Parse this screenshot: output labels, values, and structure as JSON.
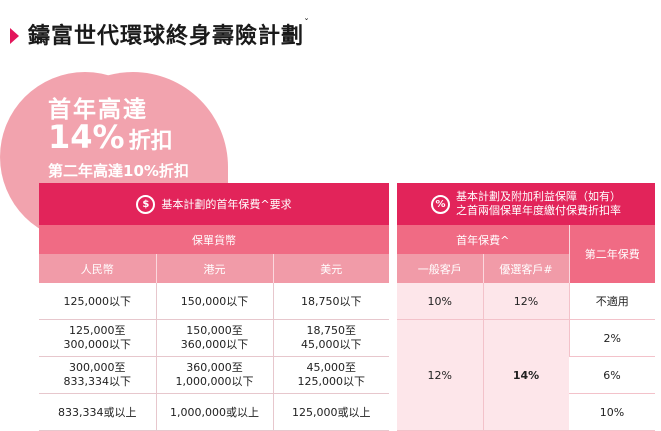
{
  "title": {
    "text": "鑄富世代環球終身壽險計劃",
    "sup": "ˇ"
  },
  "promo": {
    "line1": "首年高達",
    "line2_pct": "14%",
    "line2_cut": "折扣",
    "line3": "第二年高達10%折扣"
  },
  "left_table": {
    "header": {
      "icon": "$",
      "text": "基本計劃的首年保費^要求"
    },
    "subheader": "保單貨幣",
    "columns": [
      "人民幣",
      "港元",
      "美元"
    ],
    "rows": [
      [
        "125,000以下",
        "150,000以下",
        "18,750以下"
      ],
      [
        "125,000至\n300,000以下",
        "150,000至\n360,000以下",
        "18,750至\n45,000以下"
      ],
      [
        "300,000至\n833,334以下",
        "360,000至\n1,000,000以下",
        "45,000至\n125,000以下"
      ],
      [
        "833,334或以上",
        "1,000,000或以上",
        "125,000或以上"
      ]
    ]
  },
  "right_table": {
    "header": {
      "icon": "%",
      "line1": "基本計劃及附加利益保障（如有）",
      "line2": "之首兩個保單年度繳付保費折扣率"
    },
    "first_year_label": "首年保費^",
    "second_year_label": "第二年保費",
    "columns": [
      "一般客戶",
      "優選客戶#"
    ],
    "row1": {
      "general": "10%",
      "preferred": "12%",
      "second": "不適用"
    },
    "merged": {
      "general": "12%",
      "preferred": "14%"
    },
    "second_year_values": [
      "2%",
      "6%",
      "10%"
    ]
  },
  "colors": {
    "accent": "#e3165b",
    "header": "#e2245a",
    "sub": "#f06b84",
    "light": "#f19ba8",
    "circle": "#f2a3ae"
  }
}
